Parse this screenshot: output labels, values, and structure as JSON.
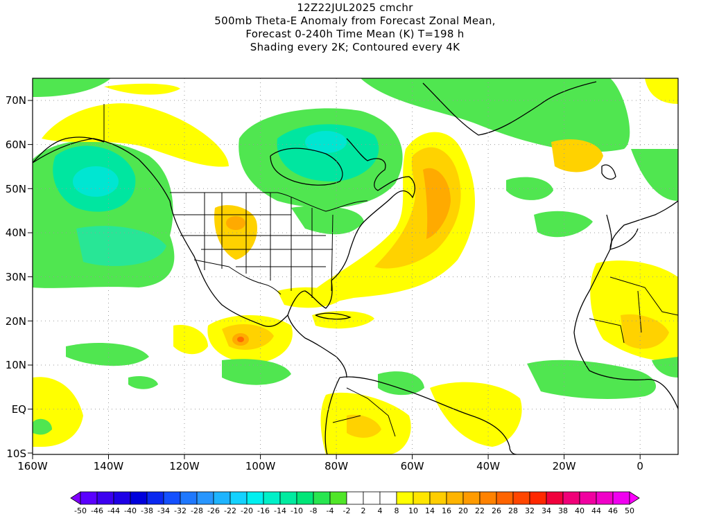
{
  "header": {
    "line1": "12Z22JUL2025 cmchr",
    "line2": "500mb Theta-E Anomaly from Forecast Zonal Mean,",
    "line3": "Forecast 0-240h Time Mean (K) T=198 h",
    "line4": "Shading every 2K; Contoured every 4K"
  },
  "map": {
    "lat_labels": [
      "70N",
      "60N",
      "50N",
      "40N",
      "30N",
      "20N",
      "10N",
      "EQ",
      "10S"
    ],
    "lon_labels": [
      "160W",
      "140W",
      "120W",
      "100W",
      "80W",
      "60W",
      "40W",
      "20W",
      "0"
    ],
    "extent": {
      "lon": [
        -160,
        10
      ],
      "lat": [
        -10,
        75
      ]
    },
    "gridlines": "dotted",
    "coastlines": "black"
  },
  "colorbar": {
    "labels": [
      "-50",
      "-46",
      "-44",
      "-40",
      "-38",
      "-34",
      "-32",
      "-28",
      "-26",
      "-22",
      "-20",
      "-16",
      "-14",
      "-10",
      "-8",
      "-4",
      "-2",
      "2",
      "4",
      "8",
      "10",
      "14",
      "16",
      "20",
      "22",
      "26",
      "28",
      "32",
      "34",
      "38",
      "40",
      "44",
      "46",
      "50"
    ],
    "colors": [
      "#8000ff",
      "#5a00ff",
      "#3c00f0",
      "#1e00e6",
      "#0000dc",
      "#0a28f0",
      "#1450ff",
      "#1e78ff",
      "#2896ff",
      "#1eb4ff",
      "#14d2ff",
      "#00f0f0",
      "#00f0c8",
      "#00eba0",
      "#00e678",
      "#28e650",
      "#50e628",
      "#ffffff",
      "#ffffff",
      "#ffffff",
      "#ffff00",
      "#ffe600",
      "#ffcd00",
      "#ffb400",
      "#ff9b00",
      "#ff8200",
      "#ff6400",
      "#ff4600",
      "#ff2800",
      "#f0003c",
      "#f00078",
      "#f000a0",
      "#f000c8",
      "#f000f0",
      "#ff00ff"
    ]
  },
  "features": {
    "greens": "#50e650",
    "teal": "#00e6a0",
    "cyan": "#00e6d2",
    "yellow": "#ffff00",
    "gold": "#ffd200",
    "orange": "#ffaa00",
    "red": "#ff6a00"
  }
}
